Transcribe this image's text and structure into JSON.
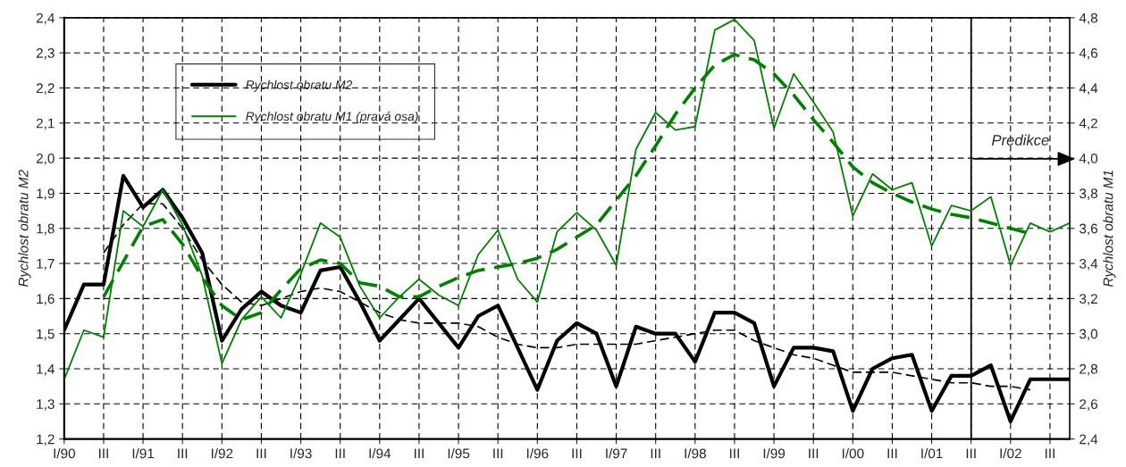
{
  "chart_data": {
    "type": "line",
    "ylabel": "Rychlost obratu M2",
    "y2label": "Rychlost obratu M1",
    "categories": [
      "I/90",
      null,
      "III",
      null,
      "I/91",
      null,
      "III",
      null,
      "I/92",
      null,
      "III",
      null,
      "I/93",
      null,
      "III",
      null,
      "I/94",
      null,
      "III",
      null,
      "I/95",
      null,
      "III",
      null,
      "I/96",
      null,
      "III",
      null,
      "I/97",
      null,
      "III",
      null,
      "I/98",
      null,
      "III",
      null,
      "I/99",
      null,
      "III",
      null,
      "I/00",
      null,
      "III",
      null,
      "I/01",
      null,
      "III",
      null,
      "I/02",
      null,
      "III",
      null
    ],
    "series": [
      {
        "name": "Rychlost obratu M2",
        "color": "#000000",
        "line_style": "solid",
        "values": [
          1.51,
          1.64,
          1.64,
          1.95,
          1.86,
          1.91,
          1.83,
          1.73,
          1.48,
          1.57,
          1.62,
          1.58,
          1.56,
          1.68,
          1.69,
          1.59,
          1.48,
          1.54,
          1.6,
          1.53,
          1.46,
          1.55,
          1.58,
          1.46,
          1.34,
          1.48,
          1.53,
          1.5,
          1.35,
          1.52,
          1.5,
          1.5,
          1.42,
          1.56,
          1.56,
          1.53,
          1.35,
          1.46,
          1.46,
          1.45,
          1.28,
          1.4,
          1.43,
          1.44,
          1.28,
          1.38,
          1.38,
          1.41,
          1.25,
          1.37,
          1.37,
          1.37
        ]
      },
      {
        "name": "Rychlost obratu M1 (pravá osa)",
        "color": "#008000",
        "line_style": "solid",
        "axis": "y2",
        "values": [
          2.74,
          3.02,
          2.98,
          3.7,
          3.61,
          3.82,
          3.62,
          3.33,
          2.83,
          3.08,
          3.21,
          3.09,
          3.34,
          3.63,
          3.55,
          3.27,
          3.09,
          3.21,
          3.31,
          3.22,
          3.16,
          3.45,
          3.59,
          3.31,
          3.18,
          3.58,
          3.69,
          3.59,
          3.39,
          4.05,
          4.26,
          4.16,
          4.18,
          4.73,
          4.79,
          4.67,
          4.17,
          4.48,
          4.32,
          4.15,
          3.67,
          3.91,
          3.82,
          3.86,
          3.5,
          3.73,
          3.7,
          3.78,
          3.39,
          3.63,
          3.58,
          3.63
        ]
      },
      {
        "color": "#000000",
        "line_style": "dashed",
        "values": [
          null,
          null,
          1.73,
          1.81,
          1.87,
          1.87,
          1.8,
          1.71,
          1.64,
          1.59,
          1.58,
          1.6,
          1.62,
          1.63,
          1.62,
          1.59,
          1.56,
          1.54,
          1.53,
          1.53,
          1.53,
          1.52,
          1.49,
          1.47,
          1.46,
          1.46,
          1.47,
          1.47,
          1.47,
          1.47,
          1.48,
          1.49,
          1.5,
          1.51,
          1.51,
          1.48,
          1.46,
          1.44,
          1.43,
          1.41,
          1.39,
          1.39,
          1.39,
          1.38,
          1.37,
          1.36,
          1.36,
          1.35,
          1.35,
          1.34,
          null,
          null
        ]
      },
      {
        "color": "#008000",
        "line_style": "dashed",
        "axis": "y2",
        "values": [
          null,
          null,
          3.21,
          3.41,
          3.61,
          3.65,
          3.51,
          3.32,
          3.16,
          3.08,
          3.12,
          3.25,
          3.37,
          3.42,
          3.4,
          3.29,
          3.27,
          3.21,
          3.21,
          3.27,
          3.32,
          3.36,
          3.38,
          3.4,
          3.43,
          3.48,
          3.55,
          3.62,
          3.76,
          3.9,
          4.07,
          4.25,
          4.4,
          4.53,
          4.59,
          4.56,
          4.48,
          4.36,
          4.22,
          4.09,
          3.95,
          3.86,
          3.8,
          3.75,
          3.71,
          3.68,
          3.66,
          3.63,
          3.6,
          3.57,
          null,
          null
        ]
      }
    ],
    "ylim": [
      1.2,
      2.4
    ],
    "yticks": [
      {
        "value": 1.2,
        "label": "1,2"
      },
      {
        "value": 1.3,
        "label": "1,3"
      },
      {
        "value": 1.4,
        "label": "1,4"
      },
      {
        "value": 1.5,
        "label": "1,5"
      },
      {
        "value": 1.6,
        "label": "1,6"
      },
      {
        "value": 1.7,
        "label": "1,7"
      },
      {
        "value": 1.8,
        "label": "1,8"
      },
      {
        "value": 1.9,
        "label": "1,9"
      },
      {
        "value": 2.0,
        "label": "2,0"
      },
      {
        "value": 2.1,
        "label": "2,1"
      },
      {
        "value": 2.2,
        "label": "2,2"
      },
      {
        "value": 2.3,
        "label": "2,3"
      },
      {
        "value": 2.4,
        "label": "2,4"
      }
    ],
    "y2lim": [
      2.4,
      4.8
    ],
    "y2ticks": [
      {
        "value": 2.4,
        "label": "2,4"
      },
      {
        "value": 2.6,
        "label": "2,6"
      },
      {
        "value": 2.8,
        "label": "2,8"
      },
      {
        "value": 3.0,
        "label": "3,0"
      },
      {
        "value": 3.2,
        "label": "3,2"
      },
      {
        "value": 3.4,
        "label": "3,4"
      },
      {
        "value": 3.6,
        "label": "3,6"
      },
      {
        "value": 3.8,
        "label": "3,8"
      },
      {
        "value": 4.0,
        "label": "4,0"
      },
      {
        "value": 4.2,
        "label": "4,2"
      },
      {
        "value": 4.4,
        "label": "4,4"
      },
      {
        "value": 4.6,
        "label": "4,6"
      },
      {
        "value": 4.8,
        "label": "4,8"
      }
    ],
    "annotations": [
      "Predikce"
    ],
    "grid": true,
    "legend": "top left",
    "marker": "none"
  }
}
